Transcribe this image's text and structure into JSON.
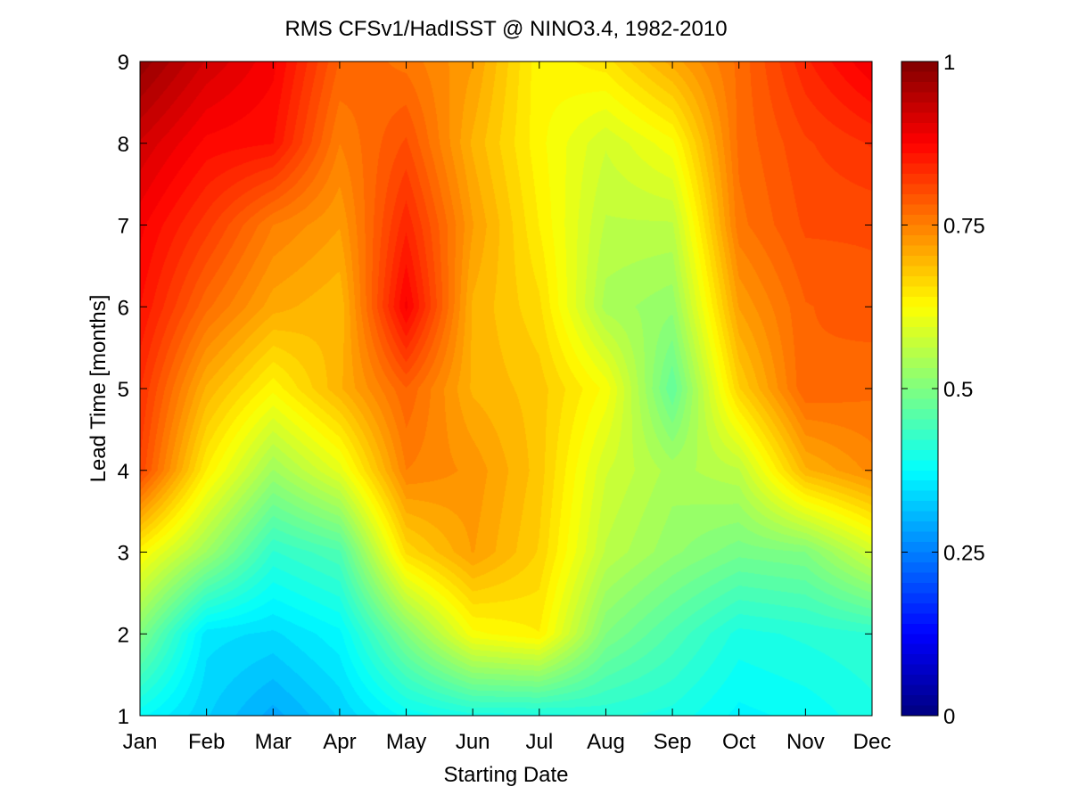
{
  "chart_data": {
    "type": "heatmap",
    "title": "RMS CFSv1/HadISST @ NINO3.4, 1982-2010",
    "xlabel": "Starting Date",
    "ylabel": "Lead Time [months]",
    "x_categories": [
      "Jan",
      "Feb",
      "Mar",
      "Apr",
      "May",
      "Jun",
      "Jul",
      "Aug",
      "Sep",
      "Oct",
      "Nov",
      "Dec"
    ],
    "y_values": [
      1,
      2,
      3,
      4,
      5,
      6,
      7,
      8,
      9
    ],
    "ylim": [
      1,
      9
    ],
    "colorbar": {
      "colormap": "jet",
      "range": [
        0,
        1
      ],
      "tick_values": [
        0,
        0.25,
        0.5,
        0.75,
        1
      ],
      "tick_labels": [
        "0",
        "0.25",
        "0.5",
        "0.75",
        "1"
      ]
    },
    "grid": false,
    "z_rows_by_lead": [
      [
        0.38,
        0.33,
        0.29,
        0.33,
        0.38,
        0.4,
        0.4,
        0.41,
        0.4,
        0.37,
        0.38,
        0.4
      ],
      [
        0.5,
        0.35,
        0.34,
        0.37,
        0.5,
        0.62,
        0.64,
        0.5,
        0.45,
        0.4,
        0.41,
        0.42
      ],
      [
        0.63,
        0.53,
        0.42,
        0.45,
        0.66,
        0.72,
        0.67,
        0.56,
        0.52,
        0.49,
        0.5,
        0.58
      ],
      [
        0.81,
        0.64,
        0.53,
        0.6,
        0.75,
        0.73,
        0.68,
        0.58,
        0.54,
        0.56,
        0.7,
        0.74
      ],
      [
        0.83,
        0.7,
        0.63,
        0.7,
        0.78,
        0.7,
        0.68,
        0.62,
        0.47,
        0.67,
        0.78,
        0.77
      ],
      [
        0.86,
        0.77,
        0.71,
        0.69,
        0.88,
        0.7,
        0.66,
        0.54,
        0.52,
        0.72,
        0.78,
        0.79
      ],
      [
        0.88,
        0.82,
        0.75,
        0.72,
        0.84,
        0.72,
        0.64,
        0.56,
        0.56,
        0.76,
        0.8,
        0.8
      ],
      [
        0.92,
        0.87,
        0.86,
        0.75,
        0.8,
        0.7,
        0.63,
        0.58,
        0.62,
        0.77,
        0.81,
        0.83
      ],
      [
        0.98,
        0.92,
        0.88,
        0.78,
        0.76,
        0.72,
        0.63,
        0.65,
        0.71,
        0.77,
        0.84,
        0.89
      ]
    ]
  }
}
